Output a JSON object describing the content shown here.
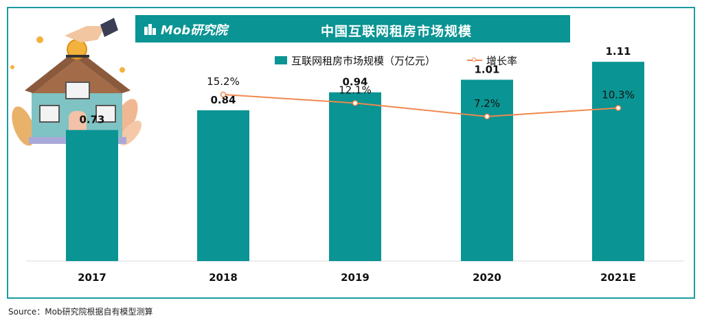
{
  "header": {
    "logo_text": "Mob研究院",
    "title": "中国互联网租房市场规模"
  },
  "legend": {
    "bar_label": "互联网租房市场规模（万亿元）",
    "line_label": "增长率"
  },
  "source": "Source：Mob研究院根据自有模型测算",
  "colors": {
    "bar": "#0a9493",
    "line": "#f0884e",
    "frame": "#1d9aa0",
    "title_bg": "#0a9493"
  },
  "chart_data": {
    "type": "bar",
    "categories": [
      "2017",
      "2018",
      "2019",
      "2020",
      "2021E"
    ],
    "series": [
      {
        "name": "互联网租房市场规模（万亿元）",
        "type": "bar",
        "values": [
          0.73,
          0.84,
          0.94,
          1.01,
          1.11
        ],
        "labels": [
          "0.73",
          "0.84",
          "0.94",
          "1.01",
          "1.11"
        ]
      },
      {
        "name": "增长率",
        "type": "line",
        "values": [
          null,
          15.2,
          12.1,
          7.2,
          10.3
        ],
        "labels": [
          "",
          "15.2%",
          "12.1%",
          "7.2%",
          "10.3%"
        ]
      }
    ],
    "title": "中国互联网租房市场规模",
    "legend_position": "top",
    "grid": false
  }
}
